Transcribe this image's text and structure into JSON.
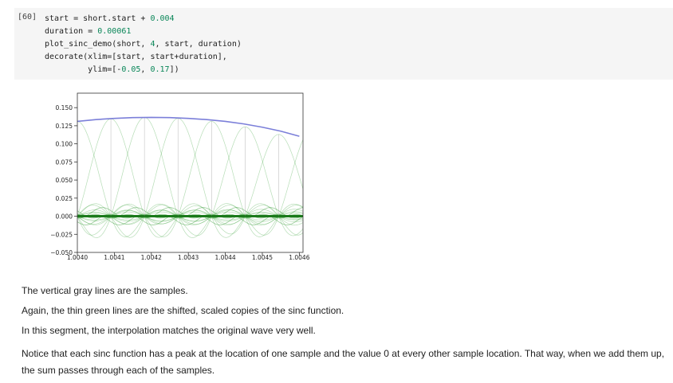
{
  "cell": {
    "execution_count": "[60]",
    "code": [
      [
        {
          "t": "start = short.start + ",
          "c": ""
        },
        {
          "t": "0.004",
          "c": "num"
        }
      ],
      [
        {
          "t": "duration = ",
          "c": ""
        },
        {
          "t": "0.00061",
          "c": "num"
        }
      ],
      [
        {
          "t": "plot_sinc_demo(short, ",
          "c": ""
        },
        {
          "t": "4",
          "c": "num"
        },
        {
          "t": ", start, duration)",
          "c": ""
        }
      ],
      [
        {
          "t": "decorate(xlim=[start, start+duration],",
          "c": ""
        }
      ],
      [
        {
          "t": "         ylim=[-",
          "c": ""
        },
        {
          "t": "0.05",
          "c": "num"
        },
        {
          "t": ", ",
          "c": ""
        },
        {
          "t": "0.17",
          "c": "num"
        },
        {
          "t": "])",
          "c": ""
        }
      ]
    ]
  },
  "chart_data": {
    "type": "line",
    "xlim": [
      1.004,
      1.00461
    ],
    "ylim": [
      -0.05,
      0.17
    ],
    "x_ticks": [
      1.004,
      1.0041,
      1.0042,
      1.0043,
      1.0044,
      1.0045,
      1.0046
    ],
    "x_tick_labels": [
      "1.0040",
      "1.0041",
      "1.0042",
      "1.0043",
      "1.0044",
      "1.0045",
      "1.0046"
    ],
    "y_ticks": [
      -0.05,
      -0.025,
      0.0,
      0.025,
      0.05,
      0.075,
      0.1,
      0.125,
      0.15
    ],
    "y_tick_labels": [
      "−0.050",
      "−0.025",
      "0.000",
      "0.025",
      "0.050",
      "0.075",
      "0.100",
      "0.125",
      "0.150"
    ],
    "grid": false,
    "series": [
      {
        "role": "interpolated",
        "color": "#7b7fd9",
        "x": [
          1.004,
          1.00405,
          1.0041,
          1.00415,
          1.0042,
          1.00425,
          1.0043,
          1.00435,
          1.0044,
          1.00445,
          1.0045,
          1.00455,
          1.0046
        ],
        "y": [
          0.131,
          0.1335,
          0.1352,
          0.1362,
          0.1365,
          0.1362,
          0.1352,
          0.1335,
          0.131,
          0.1275,
          0.123,
          0.1175,
          0.1105
        ]
      }
    ],
    "sinc_copies": {
      "color": "#2e9e2e",
      "sample_spacing": 9.07e-05,
      "first_sample": 1.004,
      "count": 7,
      "peaks": [
        0.131,
        0.1345,
        0.1365,
        0.1352,
        0.131,
        0.1235,
        0.113
      ]
    },
    "samples": {
      "color": "#888888",
      "x": [
        1.004,
        1.0040907,
        1.0041814,
        1.0042721,
        1.0043628,
        1.0044535,
        1.0045442
      ],
      "y": [
        0.131,
        0.1345,
        0.1365,
        0.1352,
        0.131,
        0.1235,
        0.113
      ]
    }
  },
  "markdown": {
    "p1": "The vertical gray lines are the samples.",
    "p2": "Again, the thin green lines are the shifted, scaled copies of the sinc function.",
    "p3": "In this segment, the interpolation matches the original wave very well.",
    "p4": "Notice that each sinc function has a peak at the location of one sample and the value 0 at every other sample location. That way, when we add them up, the sum passes through each of the samples."
  }
}
